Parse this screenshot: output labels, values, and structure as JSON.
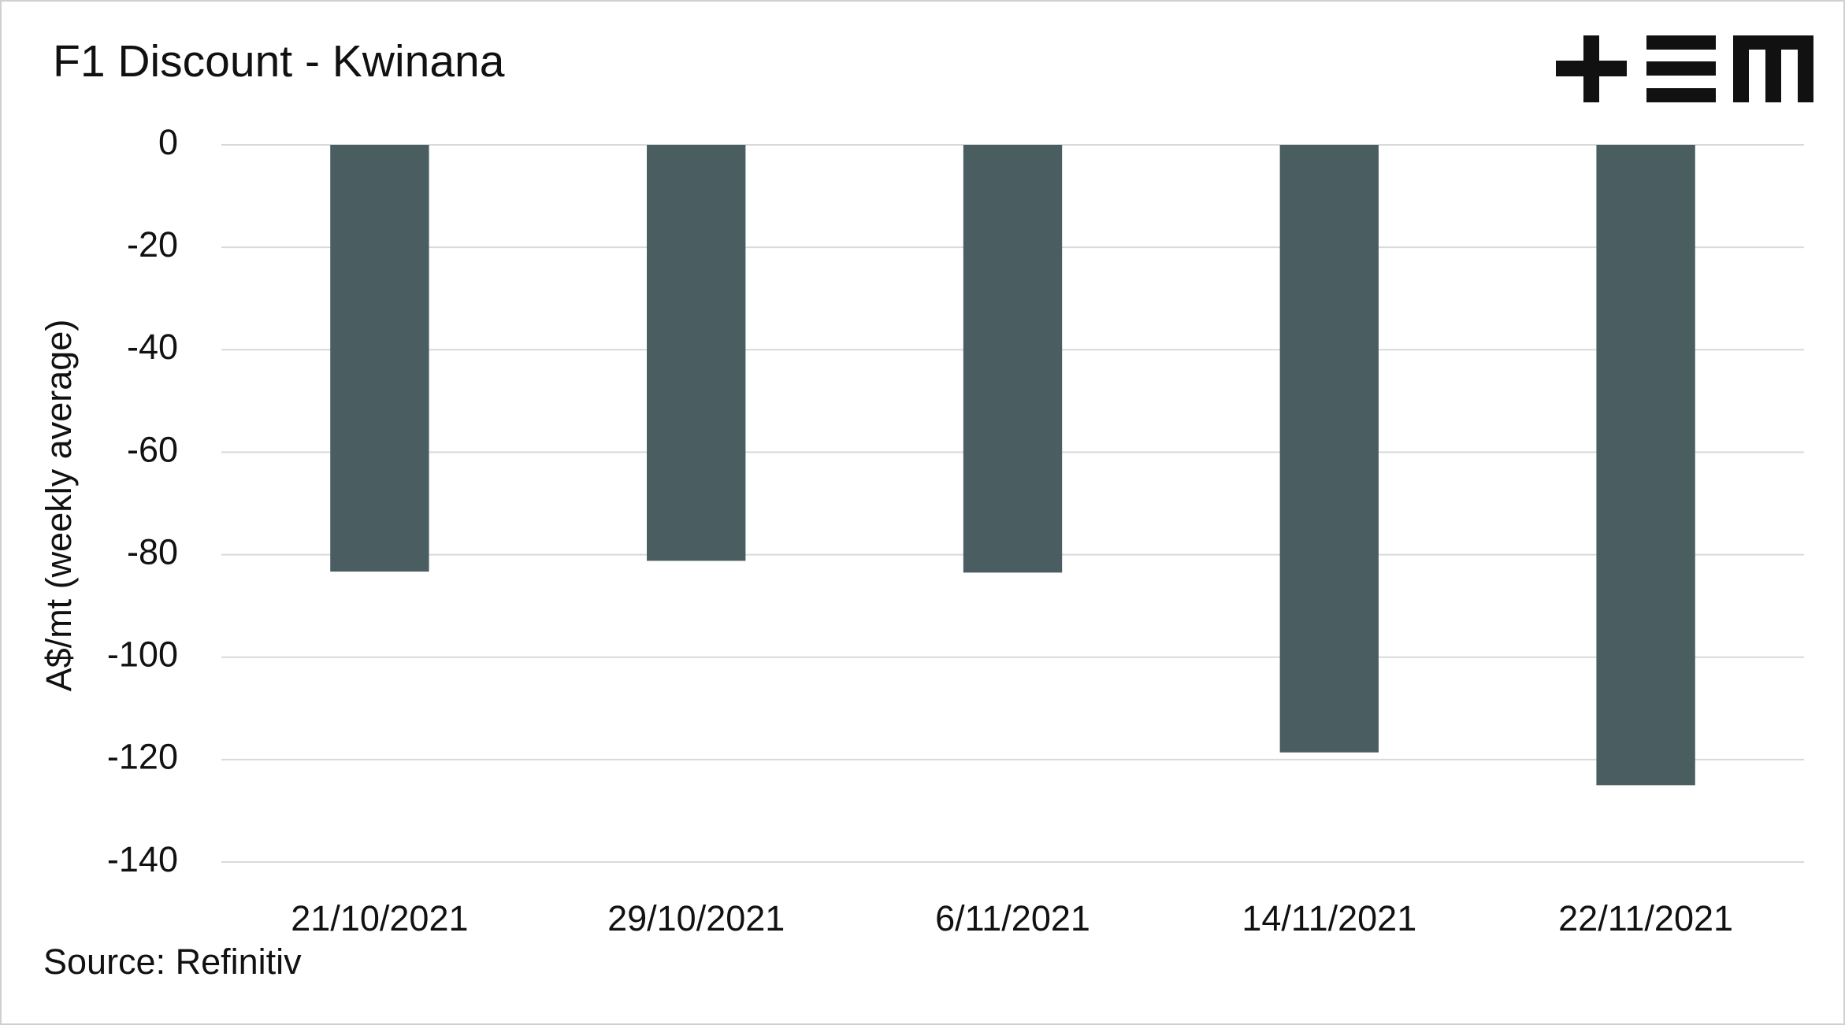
{
  "chart_data": {
    "type": "bar",
    "title": "F1 Discount - Kwinana",
    "y_label": "A$/mt (weekly average)",
    "source": "Source: Refinitiv",
    "categories": [
      "21/10/2021",
      "29/10/2021",
      "6/11/2021",
      "14/11/2021",
      "22/11/2021"
    ],
    "values": [
      -83.3,
      -81.2,
      -83.5,
      -118.6,
      -125
    ],
    "color": "#4a5e61",
    "ylim": [
      -140,
      0
    ],
    "yticks": [
      0,
      -20,
      -40,
      -60,
      -80,
      -100,
      -120,
      -140
    ],
    "grid": true
  }
}
